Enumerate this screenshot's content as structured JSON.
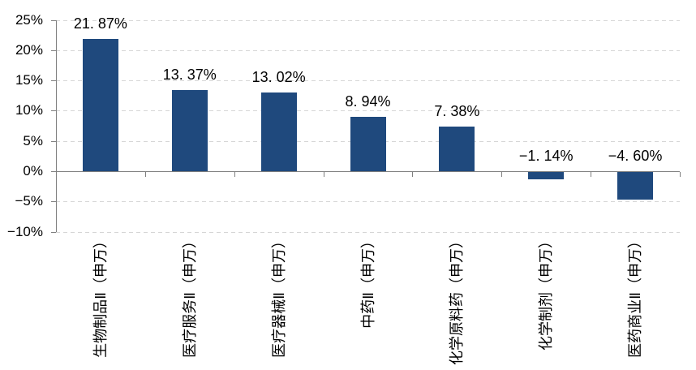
{
  "chart_data": {
    "type": "bar",
    "title": "",
    "xlabel": "",
    "ylabel": "",
    "categories": [
      "生物制品Ⅱ（申万）",
      "医疗服务Ⅱ（申万）",
      "医疗器械Ⅱ（申万）",
      "中药Ⅱ（申万）",
      "化学原料药（申万）",
      "化学制剂（申万）",
      "医药商业Ⅱ（申万）"
    ],
    "values": [
      21.87,
      13.37,
      13.02,
      8.94,
      7.38,
      -1.14,
      -4.6
    ],
    "value_labels": [
      "21. 87%",
      "13. 37%",
      "13. 02%",
      "8. 94%",
      "7. 38%",
      "−1. 14%",
      "−4. 60%"
    ],
    "ylim": [
      -10,
      25
    ],
    "y_tick_step": 5,
    "y_tick_labels": [
      "25%",
      "20%",
      "15%",
      "10%",
      "5%",
      "0%",
      "−5%",
      "−10%"
    ],
    "grid": "horizontal-dashed",
    "legend": "none",
    "bar_color": "#1F497D"
  },
  "style": {
    "bar_color": "#1F497D",
    "gridline_color": "#D6D6D6",
    "axis_color": "#7F7F7F",
    "text_color": "#000000",
    "background": "#FFFFFF"
  }
}
